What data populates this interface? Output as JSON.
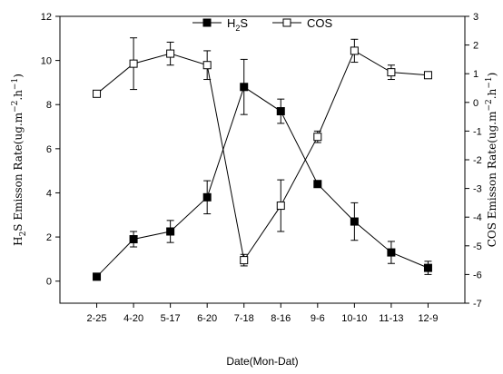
{
  "chart_data": {
    "type": "line",
    "categories": [
      "2-25",
      "4-20",
      "5-17",
      "6-20",
      "7-18",
      "8-16",
      "9-6",
      "10-10",
      "11-13",
      "12-9"
    ],
    "xlabel": "Date(Mon-Dat)",
    "ylabel_left": "H₂S Emisson Rate(ug.m⁻².h⁻¹)",
    "ylabel_right": "COS Emisson Rate(ug.m⁻².h⁻¹)",
    "ylim_left": [
      -1,
      12
    ],
    "ylim_right": [
      -7,
      3
    ],
    "yticks_left": [
      "0",
      "2",
      "4",
      "6",
      "8",
      "10",
      "12"
    ],
    "yticks_right": [
      "-7",
      "-6",
      "-5",
      "-4",
      "-3",
      "-2",
      "-1",
      "0",
      "1",
      "2",
      "3"
    ],
    "legend_position": "top-center",
    "grid": false,
    "series": [
      {
        "name": "H₂S",
        "axis": "left",
        "marker": "filled-square",
        "values": [
          0.2,
          1.9,
          2.25,
          3.8,
          8.8,
          7.7,
          4.4,
          2.7,
          1.3,
          0.6
        ],
        "errors": [
          0,
          0.35,
          0.5,
          0.75,
          1.25,
          0.55,
          0,
          0.85,
          0.5,
          0.3
        ]
      },
      {
        "name": "COS",
        "axis": "right",
        "marker": "open-square",
        "values": [
          0.3,
          1.35,
          1.7,
          1.3,
          -5.5,
          -3.6,
          -1.2,
          1.8,
          1.05,
          0.95
        ],
        "errors": [
          0.1,
          0.9,
          0.4,
          0.5,
          0.2,
          0.9,
          0.2,
          0.4,
          0.25,
          0.1
        ]
      }
    ]
  }
}
